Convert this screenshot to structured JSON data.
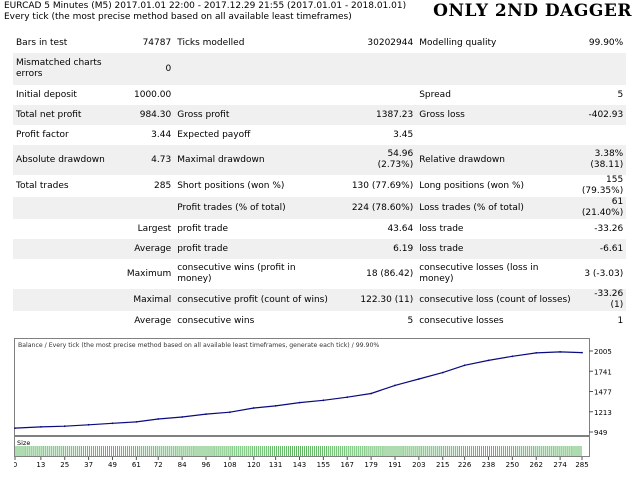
{
  "header": {
    "line1": "EURCAD   5 Minutes (M5) 2017.01.01 22:00 - 2017.12.29 21:55 (2017.01.01 - 2018.01.01)",
    "line2": "Every tick (the most precise method based on all available least timeframes)",
    "title": "ONLY 2ND DAGGER"
  },
  "report": {
    "bars_label": "Bars in test",
    "bars": "74787",
    "ticks_label": "Ticks modelled",
    "ticks": "30202944",
    "quality_label": "Modelling quality",
    "quality": "99.90%",
    "mismatch_label": "Mismatched charts errors",
    "mismatch": "0",
    "deposit_label": "Initial deposit",
    "deposit": "1000.00",
    "spread_label": "Spread",
    "spread": "5",
    "netprofit_label": "Total net profit",
    "netprofit": "984.30",
    "grossprofit_label": "Gross profit",
    "grossprofit": "1387.23",
    "grossloss_label": "Gross loss",
    "grossloss": "-402.93",
    "pf_label": "Profit factor",
    "pf": "3.44",
    "payoff_label": "Expected payoff",
    "payoff": "3.45",
    "absdd_label": "Absolute drawdown",
    "absdd": "4.73",
    "maxdd_label": "Maximal drawdown",
    "maxdd_a": "54.96",
    "maxdd_b": "(2.73%)",
    "reldd_label": "Relative drawdown",
    "reldd_a": "3.38%",
    "reldd_b": "(38.11)",
    "trades_label": "Total trades",
    "trades": "285",
    "short_label": "Short positions (won %)",
    "short": "130 (77.69%)",
    "long_label": "Long positions (won %)",
    "long": "155 (79.35%)",
    "ptrades_label": "Profit trades (% of total)",
    "ptrades": "224 (78.60%)",
    "ltrades_label": "Loss trades (% of total)",
    "ltrades": "61 (21.40%)",
    "largest_label": "Largest",
    "largest_profit_label": "profit trade",
    "largest_profit": "43.64",
    "largest_loss_label": "loss trade",
    "largest_loss": "-33.26",
    "average_label": "Average",
    "avg_profit_label": "profit trade",
    "avg_profit": "6.19",
    "avg_loss_label": "loss trade",
    "avg_loss": "-6.61",
    "maximum_label": "Maximum",
    "max_wins_label": "consecutive wins (profit in money)",
    "max_wins": "18 (86.42)",
    "max_losses_label": "consecutive losses (loss in money)",
    "max_losses": "3 (-3.03)",
    "maximal_label": "Maximal",
    "maxl_profit_label": "consecutive profit (count of wins)",
    "maxl_profit": "122.30 (11)",
    "maxl_loss_label": "consecutive loss (count of losses)",
    "maxl_loss": "-33.26 (1)",
    "avg2_label": "Average",
    "avg_wins_label": "consecutive wins",
    "avg_wins": "5",
    "avg_losses_label": "consecutive losses",
    "avg_losses": "1"
  },
  "chart_data": {
    "type": "line",
    "title": "Balance / Every tick (the most precise method based on all available least timeframes, generate each tick) / 99.90%",
    "y_ticks": [
      "2005",
      "1741",
      "1477",
      "1213",
      "949"
    ],
    "ylim": [
      949,
      2005
    ],
    "x_ticks": [
      "0",
      "13",
      "25",
      "37",
      "49",
      "61",
      "72",
      "84",
      "96",
      "108",
      "120",
      "131",
      "143",
      "155",
      "167",
      "179",
      "191",
      "203",
      "215",
      "226",
      "238",
      "250",
      "262",
      "274",
      "285"
    ],
    "xlim": [
      0,
      285
    ],
    "x": [
      0,
      13,
      25,
      37,
      49,
      61,
      72,
      84,
      96,
      108,
      120,
      131,
      143,
      155,
      167,
      179,
      191,
      203,
      215,
      226,
      238,
      250,
      262,
      274,
      285
    ],
    "y": [
      1000,
      1016,
      1024,
      1043,
      1062,
      1081,
      1119,
      1144,
      1183,
      1207,
      1262,
      1289,
      1332,
      1362,
      1403,
      1451,
      1557,
      1640,
      1723,
      1819,
      1883,
      1936,
      1980,
      1993,
      1984
    ],
    "size_label": "Size",
    "size_bars": 285,
    "colors": {
      "balance": "#0a0a80",
      "size": "#4caf50",
      "border": "#808080"
    }
  }
}
